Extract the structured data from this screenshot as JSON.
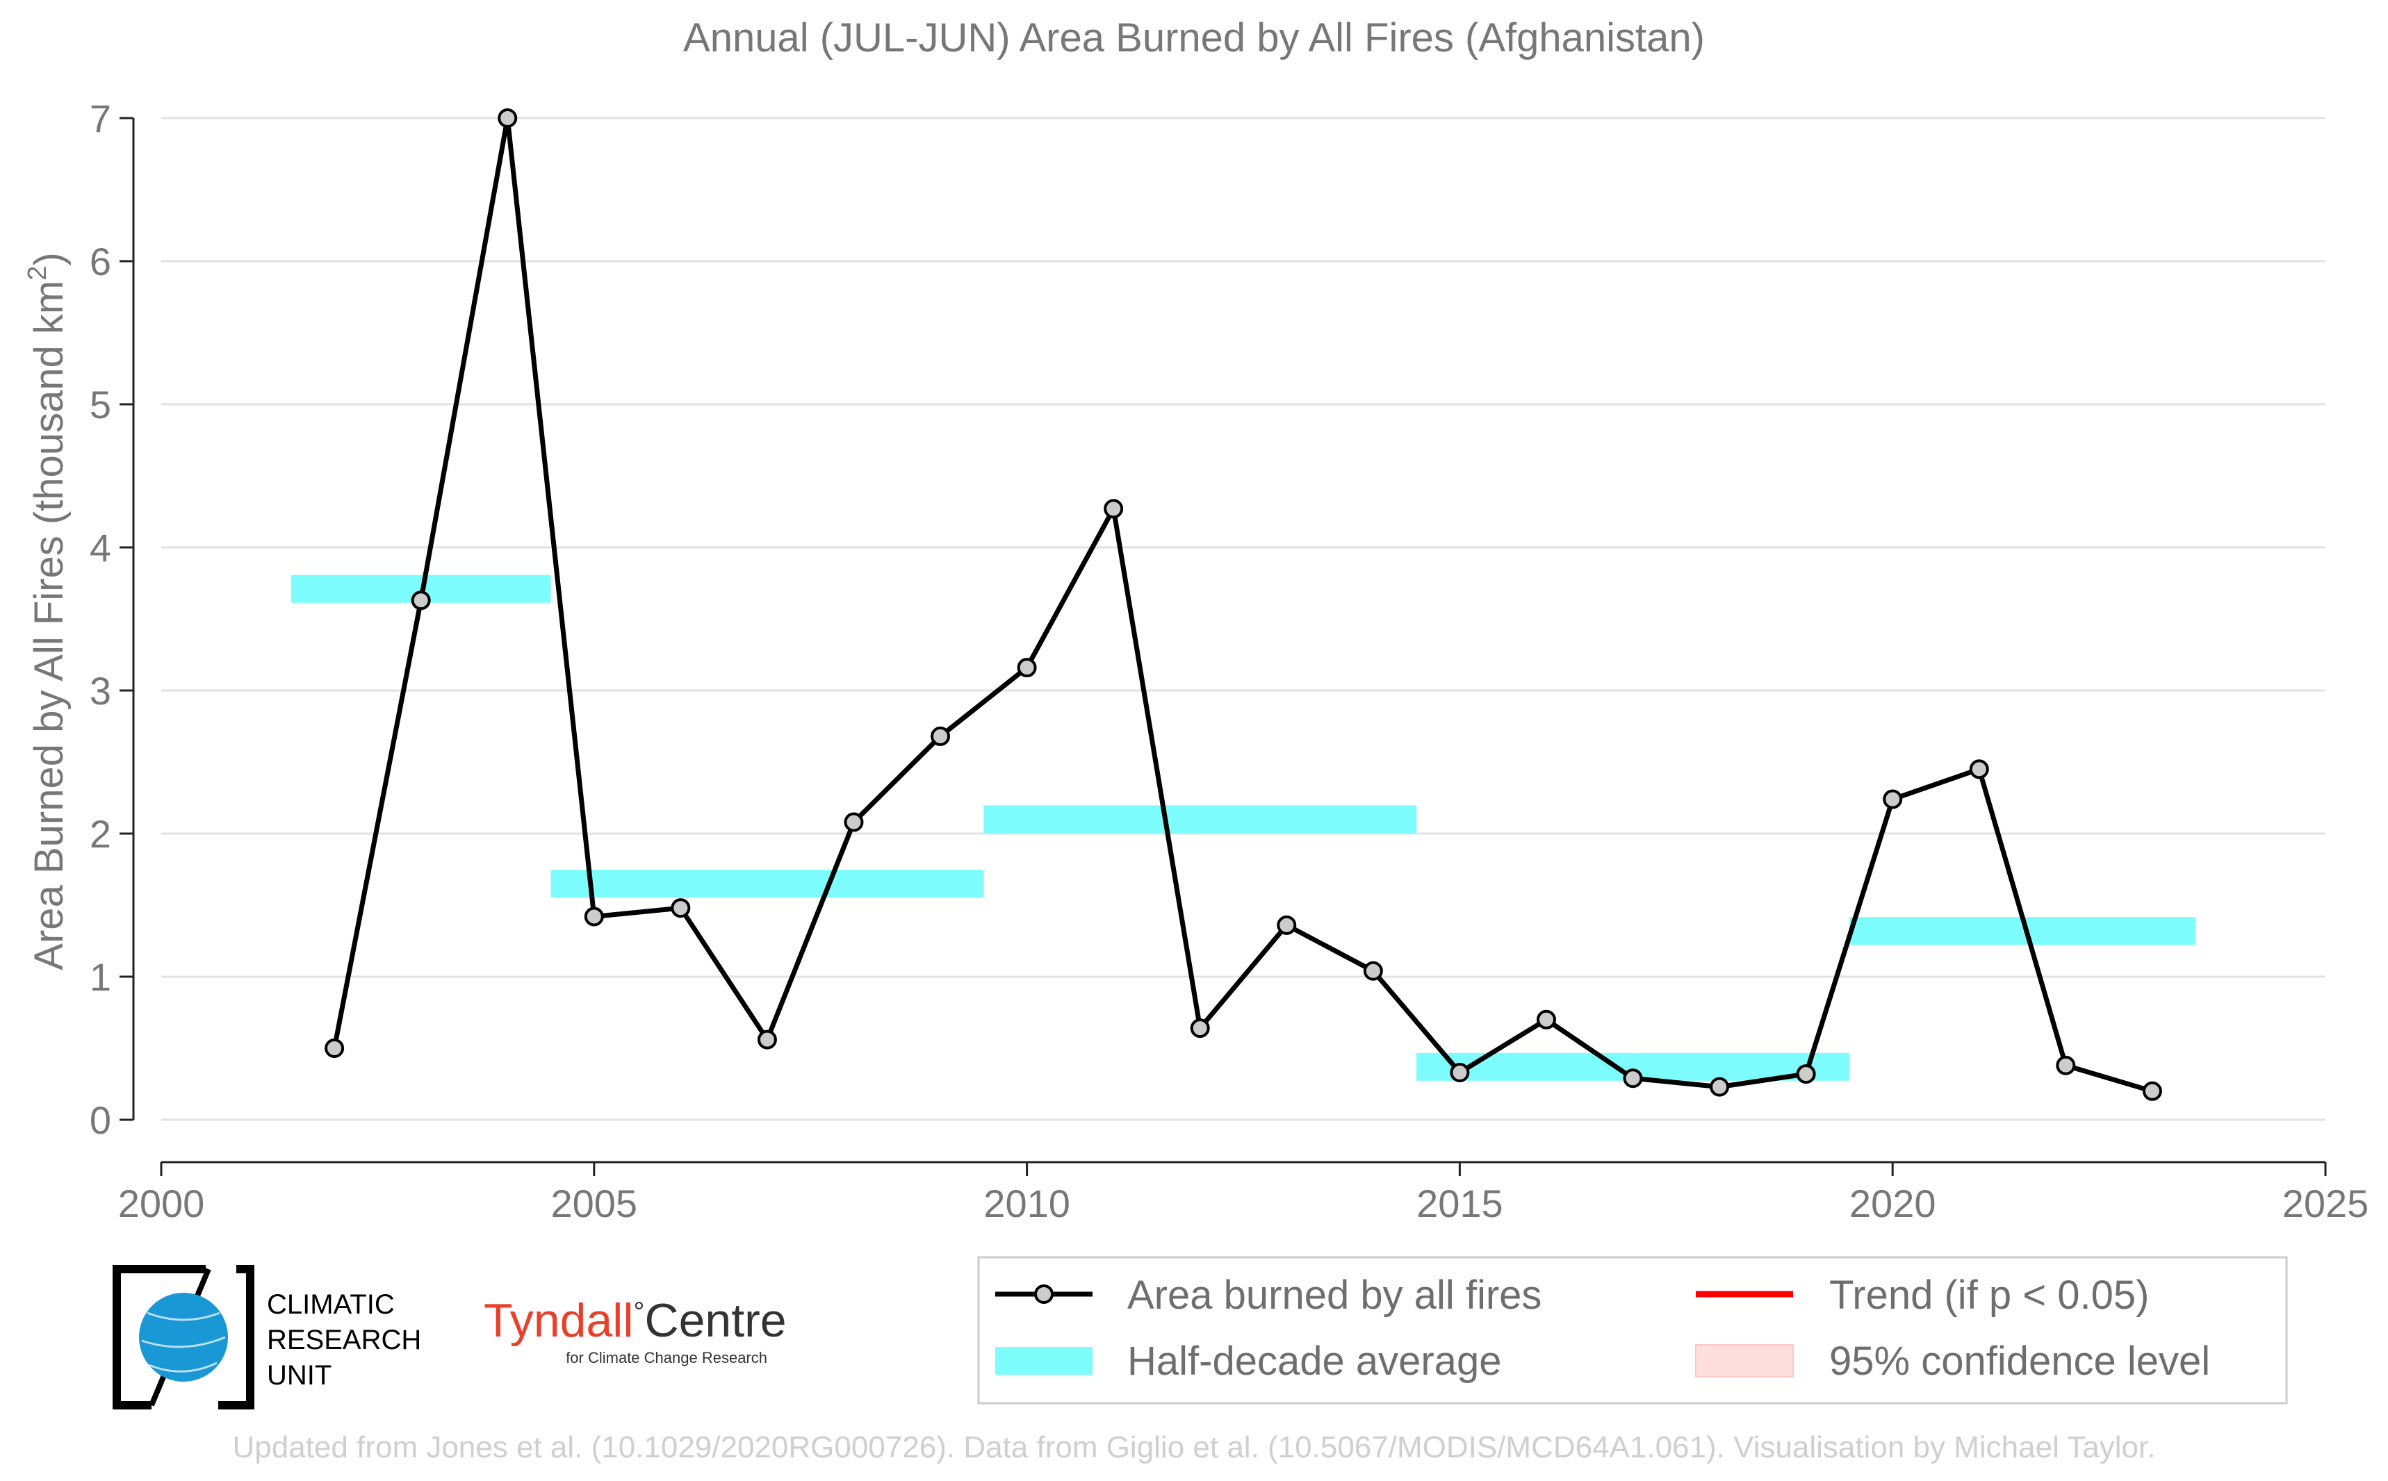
{
  "chart_data": {
    "type": "line",
    "title": "Annual (JUL-JUN) Area Burned by All Fires (Afghanistan)",
    "ylabel_main": "Area Burned by All Fires (thousand km",
    "ylabel_sup": "2",
    "ylabel_close": ")",
    "xlim": [
      2000,
      2025
    ],
    "ylim": [
      0,
      7
    ],
    "xticks": [
      "2000",
      "2005",
      "2010",
      "2015",
      "2020",
      "2025"
    ],
    "yticks": [
      "0",
      "1",
      "2",
      "3",
      "4",
      "5",
      "6",
      "7"
    ],
    "grid": "horizontal",
    "series": [
      {
        "name": "Area burned by all fires",
        "color": "#000000",
        "marker_fill": "#cccccc",
        "x": [
          2002,
          2003,
          2004,
          2005,
          2006,
          2007,
          2008,
          2009,
          2010,
          2011,
          2012,
          2013,
          2014,
          2015,
          2016,
          2017,
          2018,
          2019,
          2020,
          2021,
          2022,
          2023
        ],
        "y": [
          0.5,
          3.63,
          7.0,
          1.42,
          1.48,
          0.56,
          2.08,
          2.68,
          3.16,
          4.27,
          0.64,
          1.36,
          1.04,
          0.33,
          0.7,
          0.29,
          0.23,
          0.32,
          2.24,
          2.45,
          0.38,
          0.2
        ]
      },
      {
        "name": "Half-decade average",
        "color": "#7dfdfd",
        "segments": [
          {
            "x0": 2001.5,
            "x1": 2004.5,
            "y": 3.71
          },
          {
            "x0": 2004.5,
            "x1": 2009.5,
            "y": 1.65
          },
          {
            "x0": 2009.5,
            "x1": 2014.5,
            "y": 2.1
          },
          {
            "x0": 2014.5,
            "x1": 2019.5,
            "y": 0.37
          },
          {
            "x0": 2019.5,
            "x1": 2023.5,
            "y": 1.32
          }
        ]
      }
    ],
    "legend": {
      "placement": "bottom-right",
      "entries": [
        {
          "label": "Area burned by all fires",
          "kind": "line-marker",
          "color": "#000000"
        },
        {
          "label": "Trend (if p < 0.05)",
          "kind": "line",
          "color": "#ff0000"
        },
        {
          "label": "Half-decade average",
          "kind": "patch",
          "color": "#7dfdfd"
        },
        {
          "label": "95% confidence level",
          "kind": "patch",
          "color": "#ffdede"
        }
      ]
    }
  },
  "logos": {
    "cru_line1": "CLIMATIC",
    "cru_line2": "RESEARCH",
    "cru_line3": "UNIT",
    "tyndall_name": "Tyndall",
    "tyndall_degree": "°",
    "tyndall_centre": "Centre",
    "tyndall_sub": "for Climate Change Research"
  },
  "credit": "Updated from Jones et al. (10.1029/2020RG000726). Data from Giglio et al. (10.5067/MODIS/MCD64A1.061). Visualisation by Michael Taylor."
}
